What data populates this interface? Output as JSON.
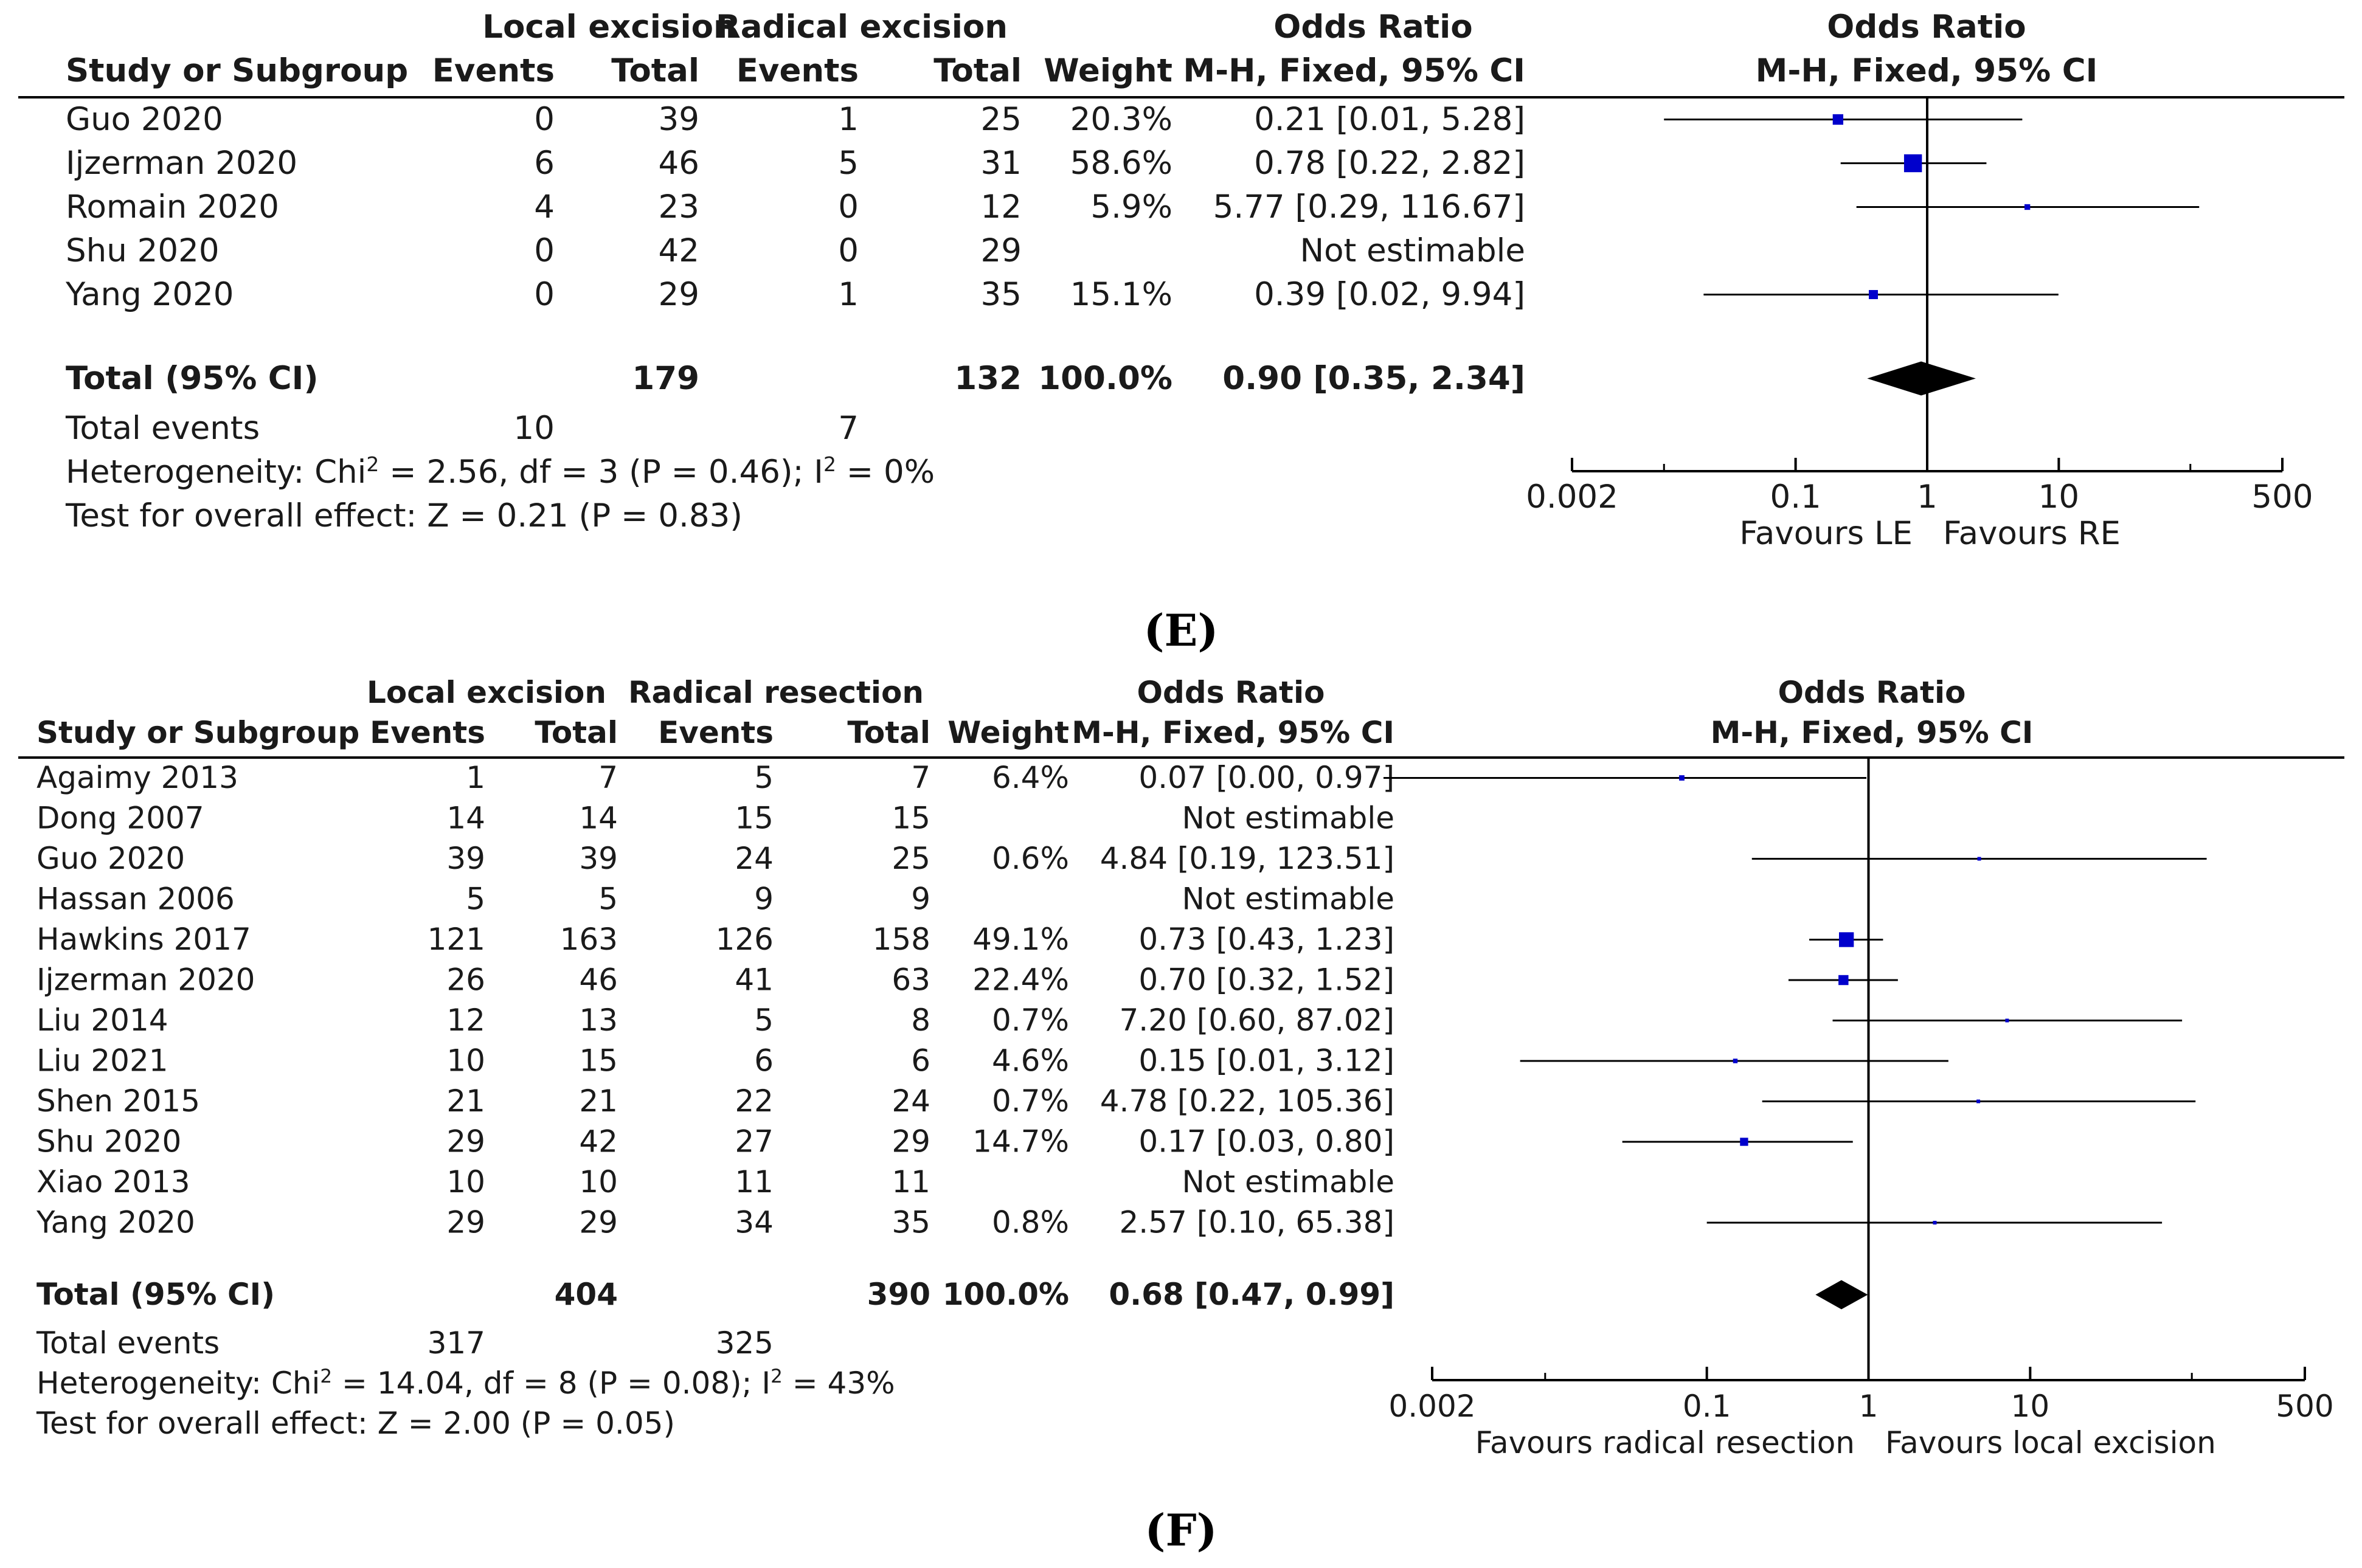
{
  "chart_data": [
    {
      "type": "forest",
      "caption": "(E)",
      "group1_label": "Local excision",
      "group2_label": "Radical excision",
      "columns": [
        "Study or Subgroup",
        "Events",
        "Total",
        "Events",
        "Total",
        "Weight",
        "M-H, Fixed, 95% CI"
      ],
      "or_header": "Odds Ratio",
      "plot_header_1": "Odds Ratio",
      "plot_header_2": "M-H, Fixed, 95% CI",
      "studies": [
        {
          "study": "Guo 2020",
          "e1": "0",
          "t1": "39",
          "e2": "1",
          "t2": "25",
          "weight": "20.3%",
          "ci_text": "0.21 [0.01, 5.28]",
          "or": 0.21,
          "lo": 0.01,
          "hi": 5.28,
          "w": 20.3
        },
        {
          "study": "Ijzerman 2020",
          "e1": "6",
          "t1": "46",
          "e2": "5",
          "t2": "31",
          "weight": "58.6%",
          "ci_text": "0.78 [0.22, 2.82]",
          "or": 0.78,
          "lo": 0.22,
          "hi": 2.82,
          "w": 58.6
        },
        {
          "study": "Romain 2020",
          "e1": "4",
          "t1": "23",
          "e2": "0",
          "t2": "12",
          "weight": "5.9%",
          "ci_text": "5.77 [0.29, 116.67]",
          "or": 5.77,
          "lo": 0.29,
          "hi": 116.67,
          "w": 5.9
        },
        {
          "study": "Shu 2020",
          "e1": "0",
          "t1": "42",
          "e2": "0",
          "t2": "29",
          "weight": "",
          "ci_text": "Not estimable",
          "or": null,
          "lo": null,
          "hi": null,
          "w": null
        },
        {
          "study": "Yang 2020",
          "e1": "0",
          "t1": "29",
          "e2": "1",
          "t2": "35",
          "weight": "15.1%",
          "ci_text": "0.39 [0.02, 9.94]",
          "or": 0.39,
          "lo": 0.02,
          "hi": 9.94,
          "w": 15.1
        }
      ],
      "total": {
        "label": "Total (95% CI)",
        "t1": "179",
        "t2": "132",
        "weight": "100.0%",
        "ci_text": "0.90 [0.35, 2.34]",
        "or": 0.9,
        "lo": 0.35,
        "hi": 2.34
      },
      "total_events": {
        "label": "Total events",
        "e1": "10",
        "e2": "7"
      },
      "heterogeneity": "Heterogeneity: Chi² = 2.56, df = 3 (P = 0.46); I² = 0%",
      "overall_effect": "Test for overall effect: Z = 0.21 (P = 0.83)",
      "axis": {
        "scale": "log",
        "range": [
          0.002,
          500
        ],
        "ticks": [
          0.002,
          0.1,
          1,
          10,
          500
        ],
        "tick_labels": [
          "0.002",
          "0.1",
          "1",
          "10",
          "500"
        ]
      },
      "favours_left": "Favours LE",
      "favours_right": "Favours RE"
    },
    {
      "type": "forest",
      "caption": "(F)",
      "group1_label": "Local excision",
      "group2_label": "Radical resection",
      "columns": [
        "Study or Subgroup",
        "Events",
        "Total",
        "Events",
        "Total",
        "Weight",
        "M-H, Fixed, 95% CI"
      ],
      "or_header": "Odds Ratio",
      "plot_header_1": "Odds Ratio",
      "plot_header_2": "M-H, Fixed, 95% CI",
      "studies": [
        {
          "study": "Agaimy 2013",
          "e1": "1",
          "t1": "7",
          "e2": "5",
          "t2": "7",
          "weight": "6.4%",
          "ci_text": "0.07 [0.00, 0.97]",
          "or": 0.07,
          "lo": 0.001,
          "hi": 0.97,
          "w": 6.4
        },
        {
          "study": "Dong 2007",
          "e1": "14",
          "t1": "14",
          "e2": "15",
          "t2": "15",
          "weight": "",
          "ci_text": "Not estimable",
          "or": null,
          "lo": null,
          "hi": null,
          "w": null
        },
        {
          "study": "Guo 2020",
          "e1": "39",
          "t1": "39",
          "e2": "24",
          "t2": "25",
          "weight": "0.6%",
          "ci_text": "4.84 [0.19, 123.51]",
          "or": 4.84,
          "lo": 0.19,
          "hi": 123.51,
          "w": 0.6
        },
        {
          "study": "Hassan 2006",
          "e1": "5",
          "t1": "5",
          "e2": "9",
          "t2": "9",
          "weight": "",
          "ci_text": "Not estimable",
          "or": null,
          "lo": null,
          "hi": null,
          "w": null
        },
        {
          "study": "Hawkins 2017",
          "e1": "121",
          "t1": "163",
          "e2": "126",
          "t2": "158",
          "weight": "49.1%",
          "ci_text": "0.73 [0.43, 1.23]",
          "or": 0.73,
          "lo": 0.43,
          "hi": 1.23,
          "w": 49.1
        },
        {
          "study": "Ijzerman 2020",
          "e1": "26",
          "t1": "46",
          "e2": "41",
          "t2": "63",
          "weight": "22.4%",
          "ci_text": "0.70 [0.32, 1.52]",
          "or": 0.7,
          "lo": 0.32,
          "hi": 1.52,
          "w": 22.4
        },
        {
          "study": "Liu 2014",
          "e1": "12",
          "t1": "13",
          "e2": "5",
          "t2": "8",
          "weight": "0.7%",
          "ci_text": "7.20 [0.60, 87.02]",
          "or": 7.2,
          "lo": 0.6,
          "hi": 87.02,
          "w": 0.7
        },
        {
          "study": "Liu 2021",
          "e1": "10",
          "t1": "15",
          "e2": "6",
          "t2": "6",
          "weight": "4.6%",
          "ci_text": "0.15 [0.01, 3.12]",
          "or": 0.15,
          "lo": 0.007,
          "hi": 3.12,
          "w": 4.6
        },
        {
          "study": "Shen 2015",
          "e1": "21",
          "t1": "21",
          "e2": "22",
          "t2": "24",
          "weight": "0.7%",
          "ci_text": "4.78 [0.22, 105.36]",
          "or": 4.78,
          "lo": 0.22,
          "hi": 105.36,
          "w": 0.7
        },
        {
          "study": "Shu 2020",
          "e1": "29",
          "t1": "42",
          "e2": "27",
          "t2": "29",
          "weight": "14.7%",
          "ci_text": "0.17 [0.03, 0.80]",
          "or": 0.17,
          "lo": 0.03,
          "hi": 0.8,
          "w": 14.7
        },
        {
          "study": "Xiao 2013",
          "e1": "10",
          "t1": "10",
          "e2": "11",
          "t2": "11",
          "weight": "",
          "ci_text": "Not estimable",
          "or": null,
          "lo": null,
          "hi": null,
          "w": null
        },
        {
          "study": "Yang 2020",
          "e1": "29",
          "t1": "29",
          "e2": "34",
          "t2": "35",
          "weight": "0.8%",
          "ci_text": "2.57 [0.10, 65.38]",
          "or": 2.57,
          "lo": 0.1,
          "hi": 65.38,
          "w": 0.8
        }
      ],
      "total": {
        "label": "Total (95% CI)",
        "t1": "404",
        "t2": "390",
        "weight": "100.0%",
        "ci_text": "0.68 [0.47, 0.99]",
        "or": 0.68,
        "lo": 0.47,
        "hi": 0.99
      },
      "total_events": {
        "label": "Total events",
        "e1": "317",
        "e2": "325"
      },
      "heterogeneity": "Heterogeneity: Chi² = 14.04, df = 8 (P = 0.08); I² = 43%",
      "overall_effect": "Test for overall effect: Z = 2.00 (P = 0.05)",
      "axis": {
        "scale": "log",
        "range": [
          0.002,
          500
        ],
        "ticks": [
          0.002,
          0.1,
          1,
          10,
          500
        ],
        "tick_labels": [
          "0.002",
          "0.1",
          "1",
          "10",
          "500"
        ]
      },
      "favours_left": "Favours radical resection",
      "favours_right": "Favours local excision"
    }
  ],
  "colors": {
    "marker": "#0000cc",
    "diamond": "#000000",
    "line": "#000000",
    "text": "#1a1a1a"
  }
}
